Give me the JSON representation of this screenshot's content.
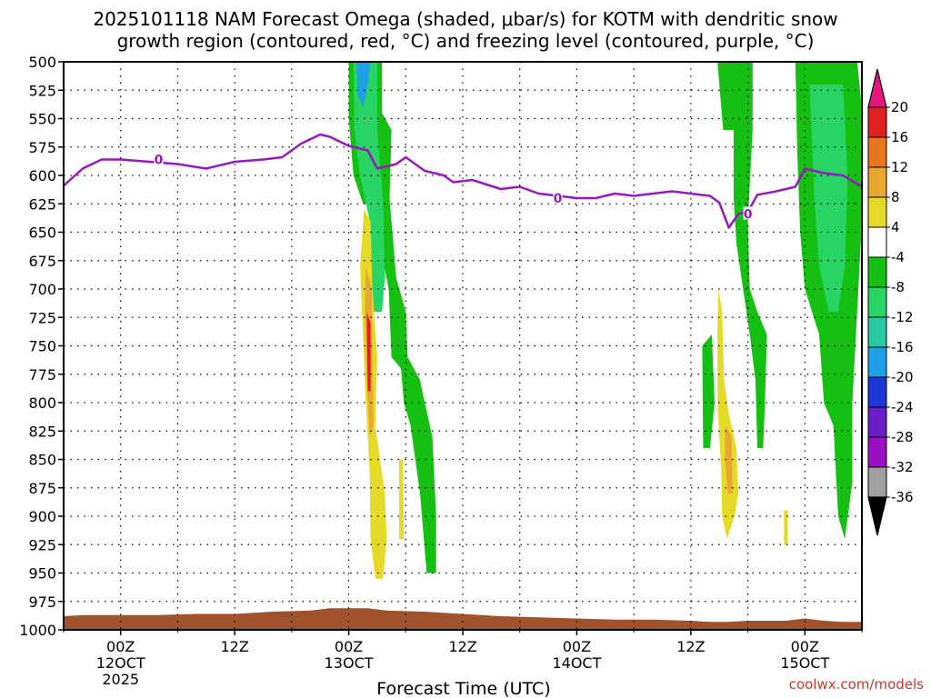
{
  "chart_data": {
    "type": "heatmap",
    "title_line1": "2025101118 NAM Forecast Omega (shaded, μbar/s) for KOTM with dendritic snow",
    "title_line2": "growth region (contoured, red, °C) and freezing level (contoured, purple, °C)",
    "xlabel": "Forecast Time (UTC)",
    "credit": "coolwx.com/models",
    "x_range_hours": [
      -6,
      78
    ],
    "y_range_mb": [
      500,
      1000
    ],
    "y_ticks": [
      500,
      525,
      550,
      575,
      600,
      625,
      650,
      675,
      700,
      725,
      750,
      775,
      800,
      825,
      850,
      875,
      900,
      925,
      950,
      975,
      1000
    ],
    "x_ticks": [
      {
        "hour": 0,
        "line1": "00Z",
        "line2": "12OCT",
        "line3": "2025"
      },
      {
        "hour": 12,
        "line1": "12Z",
        "line2": "",
        "line3": ""
      },
      {
        "hour": 24,
        "line1": "00Z",
        "line2": "13OCT",
        "line3": ""
      },
      {
        "hour": 36,
        "line1": "12Z",
        "line2": "",
        "line3": ""
      },
      {
        "hour": 48,
        "line1": "00Z",
        "line2": "14OCT",
        "line3": ""
      },
      {
        "hour": 60,
        "line1": "12Z",
        "line2": "",
        "line3": ""
      },
      {
        "hour": 72,
        "line1": "00Z",
        "line2": "15OCT",
        "line3": ""
      }
    ],
    "colorbar": {
      "labels": [
        "20",
        "16",
        "12",
        "8",
        "4",
        "-4",
        "-8",
        "-12",
        "-16",
        "-20",
        "-24",
        "-28",
        "-32",
        "-36"
      ],
      "colors": [
        "#e8177e",
        "#e0201e",
        "#e8761e",
        "#e8a830",
        "#e6da28",
        "#ffffff",
        "#15c013",
        "#27d464",
        "#28c8a0",
        "#1ea0e8",
        "#1f37d6",
        "#6a1ec8",
        "#9a0fc2",
        "#a0a0a0",
        "#000000"
      ]
    },
    "freezing_level": {
      "color": "#9a18c0",
      "label": "0",
      "points": [
        [
          -6,
          609
        ],
        [
          -4,
          594
        ],
        [
          -2,
          586
        ],
        [
          0,
          586
        ],
        [
          3,
          588
        ],
        [
          6,
          590
        ],
        [
          9,
          594
        ],
        [
          12,
          588
        ],
        [
          15,
          586
        ],
        [
          17,
          584
        ],
        [
          19,
          572
        ],
        [
          21,
          564
        ],
        [
          22,
          566
        ],
        [
          24,
          574
        ],
        [
          26,
          578
        ],
        [
          27,
          594
        ],
        [
          29,
          590
        ],
        [
          30,
          584
        ],
        [
          32,
          596
        ],
        [
          34,
          600
        ],
        [
          35,
          606
        ],
        [
          37,
          604
        ],
        [
          40,
          612
        ],
        [
          42,
          610
        ],
        [
          44,
          616
        ],
        [
          46,
          618
        ],
        [
          48,
          620
        ],
        [
          50,
          620
        ],
        [
          52,
          616
        ],
        [
          54,
          618
        ],
        [
          56,
          616
        ],
        [
          58,
          614
        ],
        [
          60,
          616
        ],
        [
          62,
          618
        ],
        [
          63,
          624
        ],
        [
          64,
          646
        ],
        [
          65,
          634
        ],
        [
          66,
          632
        ],
        [
          67,
          617
        ],
        [
          69,
          614
        ],
        [
          71,
          610
        ],
        [
          72,
          594
        ],
        [
          73,
          596
        ],
        [
          74,
          598
        ],
        [
          76,
          600
        ],
        [
          78,
          610
        ]
      ],
      "label_points": [
        [
          4,
          586
        ],
        [
          46,
          620
        ],
        [
          66,
          634
        ]
      ]
    },
    "omega_regions": [
      {
        "name": "upward-motion-column-13oct",
        "level": -8,
        "polygon": [
          [
            24,
            500
          ],
          [
            27.5,
            500
          ],
          [
            27.5,
            545
          ],
          [
            28.5,
            560
          ],
          [
            28.3,
            620
          ],
          [
            29,
            690
          ],
          [
            30,
            720
          ],
          [
            30.2,
            760
          ],
          [
            31.5,
            780
          ],
          [
            32,
            800
          ],
          [
            32.8,
            830
          ],
          [
            33.2,
            900
          ],
          [
            33.2,
            950
          ],
          [
            32.2,
            950
          ],
          [
            31.5,
            880
          ],
          [
            30.5,
            820
          ],
          [
            29.8,
            800
          ],
          [
            29.5,
            770
          ],
          [
            28.5,
            760
          ],
          [
            28.2,
            700
          ],
          [
            27,
            650
          ],
          [
            26,
            625
          ],
          [
            25.5,
            625
          ],
          [
            24.5,
            600
          ],
          [
            24,
            550
          ]
        ]
      },
      {
        "name": "upward-motion-core-13oct",
        "level": -12,
        "polygon": [
          [
            24.5,
            500
          ],
          [
            27,
            500
          ],
          [
            27,
            560
          ],
          [
            27.6,
            620
          ],
          [
            27.8,
            690
          ],
          [
            27.5,
            720
          ],
          [
            26.5,
            720
          ],
          [
            26.2,
            640
          ],
          [
            25.2,
            600
          ],
          [
            24.6,
            560
          ]
        ]
      },
      {
        "name": "upward-motion-max-13oct",
        "level": -16,
        "polygon": [
          [
            24.8,
            500
          ],
          [
            26.3,
            500
          ],
          [
            26,
            520
          ],
          [
            25.5,
            540
          ],
          [
            25,
            530
          ]
        ]
      },
      {
        "name": "upward-motion-column-14oct",
        "level": -8,
        "polygon": [
          [
            62.8,
            500
          ],
          [
            66.5,
            500
          ],
          [
            66.5,
            560
          ],
          [
            66,
            640
          ],
          [
            66.2,
            700
          ],
          [
            67,
            720
          ],
          [
            68,
            740
          ],
          [
            67.8,
            800
          ],
          [
            67.6,
            840
          ],
          [
            67,
            840
          ],
          [
            66.8,
            780
          ],
          [
            66.2,
            740
          ],
          [
            65.5,
            700
          ],
          [
            64.8,
            660
          ],
          [
            64.5,
            620
          ],
          [
            64.5,
            560
          ],
          [
            63.4,
            560
          ],
          [
            63,
            520
          ]
        ]
      },
      {
        "name": "upward-motion-column-15oct",
        "level": -8,
        "polygon": [
          [
            71,
            500
          ],
          [
            77.5,
            500
          ],
          [
            78,
            540
          ],
          [
            78,
            640
          ],
          [
            77.5,
            720
          ],
          [
            77,
            800
          ],
          [
            77,
            870
          ],
          [
            76.2,
            920
          ],
          [
            75.5,
            900
          ],
          [
            75,
            820
          ],
          [
            74,
            800
          ],
          [
            73.5,
            740
          ],
          [
            72,
            700
          ],
          [
            71.5,
            650
          ],
          [
            71.2,
            580
          ]
        ]
      },
      {
        "name": "upward-motion-core-15oct",
        "level": -12,
        "polygon": [
          [
            72.5,
            520
          ],
          [
            76,
            520
          ],
          [
            76.5,
            600
          ],
          [
            76.2,
            680
          ],
          [
            75.5,
            720
          ],
          [
            74.5,
            720
          ],
          [
            73.5,
            680
          ],
          [
            73,
            620
          ]
        ]
      },
      {
        "name": "upward-motion-patch-early",
        "level": -8,
        "polygon": [
          [
            61.2,
            750
          ],
          [
            62.2,
            740
          ],
          [
            62.5,
            800
          ],
          [
            62,
            840
          ],
          [
            61.3,
            840
          ]
        ]
      },
      {
        "name": "downward-motion-13oct",
        "level": 4,
        "polygon": [
          [
            25.6,
            630
          ],
          [
            26.3,
            640
          ],
          [
            26.5,
            700
          ],
          [
            27,
            760
          ],
          [
            26.8,
            820
          ],
          [
            27.8,
            880
          ],
          [
            28,
            920
          ],
          [
            27.6,
            955
          ],
          [
            26.8,
            955
          ],
          [
            26.3,
            920
          ],
          [
            26.2,
            860
          ],
          [
            25.8,
            800
          ],
          [
            25.4,
            720
          ],
          [
            25.2,
            680
          ]
        ]
      },
      {
        "name": "downward-motion-core-13oct",
        "level": 8,
        "polygon": [
          [
            25.8,
            680
          ],
          [
            26.4,
            700
          ],
          [
            26.5,
            760
          ],
          [
            26.6,
            820
          ],
          [
            26.2,
            830
          ],
          [
            25.9,
            780
          ],
          [
            25.7,
            720
          ]
        ]
      },
      {
        "name": "downward-motion-max-13oct",
        "level": 16,
        "polygon": [
          [
            25.9,
            720
          ],
          [
            26.3,
            730
          ],
          [
            26.3,
            790
          ],
          [
            26,
            790
          ]
        ]
      },
      {
        "name": "downward-motion-small-13oct",
        "level": 4,
        "polygon": [
          [
            29.3,
            850
          ],
          [
            29.7,
            850
          ],
          [
            29.8,
            920
          ],
          [
            29.3,
            920
          ]
        ]
      },
      {
        "name": "downward-motion-14oct",
        "level": 4,
        "polygon": [
          [
            62.9,
            700
          ],
          [
            63.3,
            720
          ],
          [
            63.5,
            780
          ],
          [
            64,
            810
          ],
          [
            64.8,
            840
          ],
          [
            65,
            880
          ],
          [
            64.6,
            900
          ],
          [
            63.8,
            920
          ],
          [
            63.3,
            900
          ],
          [
            63.2,
            860
          ],
          [
            62.8,
            800
          ],
          [
            62.8,
            740
          ]
        ]
      },
      {
        "name": "downward-motion-core-14oct",
        "level": 8,
        "polygon": [
          [
            63.6,
            820
          ],
          [
            64.3,
            830
          ],
          [
            64.4,
            880
          ],
          [
            63.9,
            880
          ],
          [
            63.6,
            850
          ]
        ]
      },
      {
        "name": "downward-motion-tiny-15oct",
        "level": 4,
        "polygon": [
          [
            69.8,
            895
          ],
          [
            70.2,
            895
          ],
          [
            70.2,
            925
          ],
          [
            69.8,
            925
          ]
        ]
      }
    ],
    "terrain": {
      "color": "#a0522d",
      "surface_points": [
        [
          -6,
          988
        ],
        [
          -4,
          987
        ],
        [
          0,
          987
        ],
        [
          4,
          987
        ],
        [
          8,
          986
        ],
        [
          12,
          986
        ],
        [
          16,
          984
        ],
        [
          20,
          983
        ],
        [
          22,
          981
        ],
        [
          24,
          981
        ],
        [
          26,
          981
        ],
        [
          28,
          983
        ],
        [
          32,
          984
        ],
        [
          36,
          986
        ],
        [
          40,
          988
        ],
        [
          44,
          989
        ],
        [
          48,
          990
        ],
        [
          52,
          991
        ],
        [
          56,
          991
        ],
        [
          60,
          992
        ],
        [
          62,
          993
        ],
        [
          64,
          993
        ],
        [
          66,
          992
        ],
        [
          68,
          992
        ],
        [
          70,
          992
        ],
        [
          72,
          990
        ],
        [
          74,
          992
        ],
        [
          76,
          993
        ],
        [
          78,
          993
        ]
      ]
    }
  }
}
